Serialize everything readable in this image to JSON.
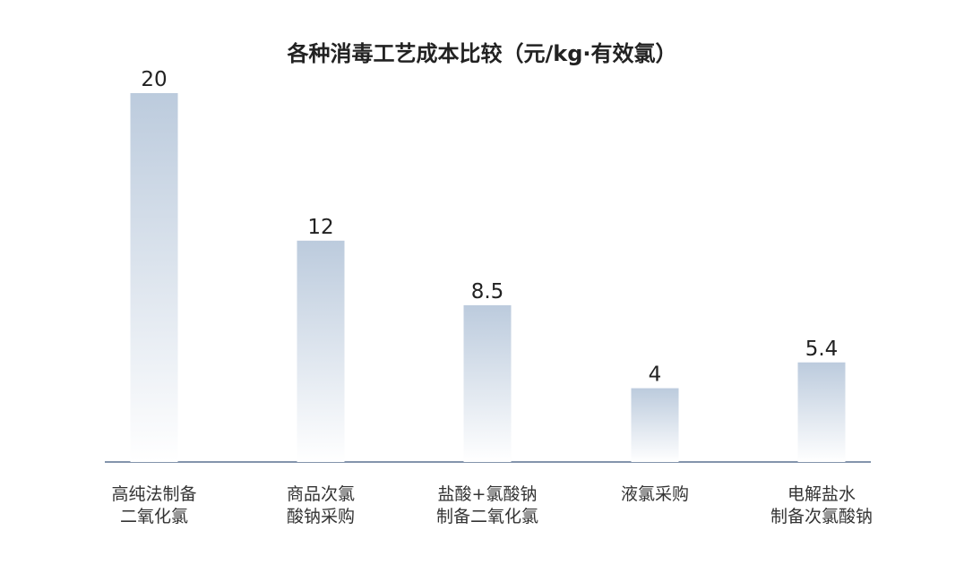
{
  "chart_data": {
    "type": "bar",
    "title": "各种消毒工艺成本比较（元/kg·有效氯）",
    "categories": [
      "高纯法制备\n二氧化氯",
      "商品次氯\n酸钠采购",
      "盐酸+氯酸钠\n制备二氧化氯",
      "液氯采购",
      "电解盐水\n制备次氯酸钠"
    ],
    "values": [
      20,
      12,
      8.5,
      4,
      5.4
    ],
    "value_labels": [
      "20",
      "12",
      "8.5",
      "4",
      "5.4"
    ],
    "xlabel": "",
    "ylabel": "",
    "ylim": [
      0,
      20
    ],
    "grid": false,
    "colors": {
      "bar_top": "#bccbdd",
      "bar_bottom": "#ffffff",
      "axis": "#5a7090"
    }
  }
}
